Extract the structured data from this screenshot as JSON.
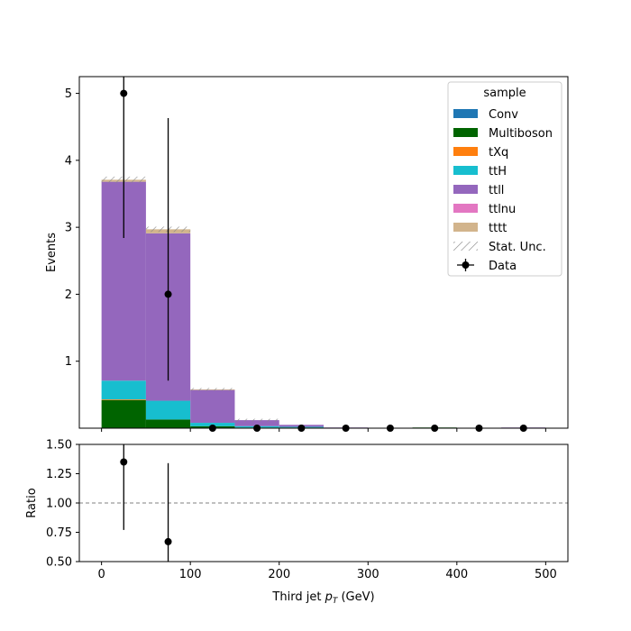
{
  "chart_data": {
    "type": "bar",
    "stacked": true,
    "x_edges": [
      0,
      50,
      100,
      150,
      200,
      250,
      300,
      350,
      400,
      450,
      500
    ],
    "series": [
      {
        "name": "Conv",
        "color": "#1f77b4",
        "values": [
          0.0,
          0.0,
          0.0,
          0.0,
          0.0,
          0.0,
          0.0,
          0.0,
          0.0,
          0.0
        ]
      },
      {
        "name": "Multiboson",
        "color": "#006400",
        "values": [
          0.42,
          0.13,
          0.03,
          0.01,
          0.01,
          0.0,
          0.0,
          0.01,
          0.0,
          0.0
        ]
      },
      {
        "name": "tXq",
        "color": "#ff7f0e",
        "values": [
          0.01,
          0.0,
          0.0,
          0.0,
          0.0,
          0.0,
          0.0,
          0.0,
          0.0,
          0.0
        ]
      },
      {
        "name": "ttH",
        "color": "#17becf",
        "values": [
          0.28,
          0.28,
          0.05,
          0.02,
          0.01,
          0.0,
          0.0,
          0.0,
          0.0,
          0.0
        ]
      },
      {
        "name": "ttll",
        "color": "#9467bd",
        "values": [
          2.97,
          2.5,
          0.49,
          0.09,
          0.03,
          0.01,
          0.0,
          0.0,
          0.0,
          0.01
        ]
      },
      {
        "name": "ttlnu",
        "color": "#e377c2",
        "values": [
          0.0,
          0.0,
          0.0,
          0.0,
          0.0,
          0.0,
          0.0,
          0.0,
          0.0,
          0.0
        ]
      },
      {
        "name": "tttt",
        "color": "#d2b48c",
        "values": [
          0.03,
          0.06,
          0.01,
          0.0,
          0.0,
          0.0,
          0.0,
          0.0,
          0.0,
          0.0
        ]
      }
    ],
    "stat_unc_label": "Stat. Unc.",
    "data": {
      "name": "Data",
      "x": [
        25,
        75,
        125,
        175,
        225,
        275,
        325,
        375,
        425,
        475
      ],
      "y": [
        5,
        2,
        0,
        0,
        0,
        0,
        0,
        0,
        0,
        0
      ],
      "err_low": [
        2.16,
        1.29,
        0,
        0,
        0,
        0,
        0,
        0,
        0,
        0
      ],
      "err_high": [
        3.38,
        2.63,
        0,
        0,
        0,
        0,
        0,
        0,
        0,
        0
      ]
    },
    "ratio": {
      "x": [
        25,
        75
      ],
      "y": [
        1.35,
        0.67
      ],
      "err_low": [
        0.58,
        0.67
      ],
      "err_high": [
        0.58,
        0.67
      ],
      "reference_line": 1.0
    },
    "legend_title": "sample",
    "legend_position": "top-right",
    "xlabel_main": "Third jet  ",
    "xlabel_math": "p",
    "xlabel_sub": "T",
    "xlabel_unit": " (GeV)",
    "ylabel_main": "Events",
    "ylabel_ratio": "Ratio",
    "xlim": [
      -25,
      525
    ],
    "ylim_main": [
      0,
      5.25
    ],
    "ylim_ratio": [
      0.5,
      1.5
    ],
    "xticks": [
      "0",
      "100",
      "200",
      "300",
      "400",
      "500"
    ],
    "yticks_main": [
      "1",
      "2",
      "3",
      "4",
      "5"
    ],
    "yticks_ratio": [
      "0.50",
      "0.75",
      "1.00",
      "1.25",
      "1.50"
    ]
  }
}
